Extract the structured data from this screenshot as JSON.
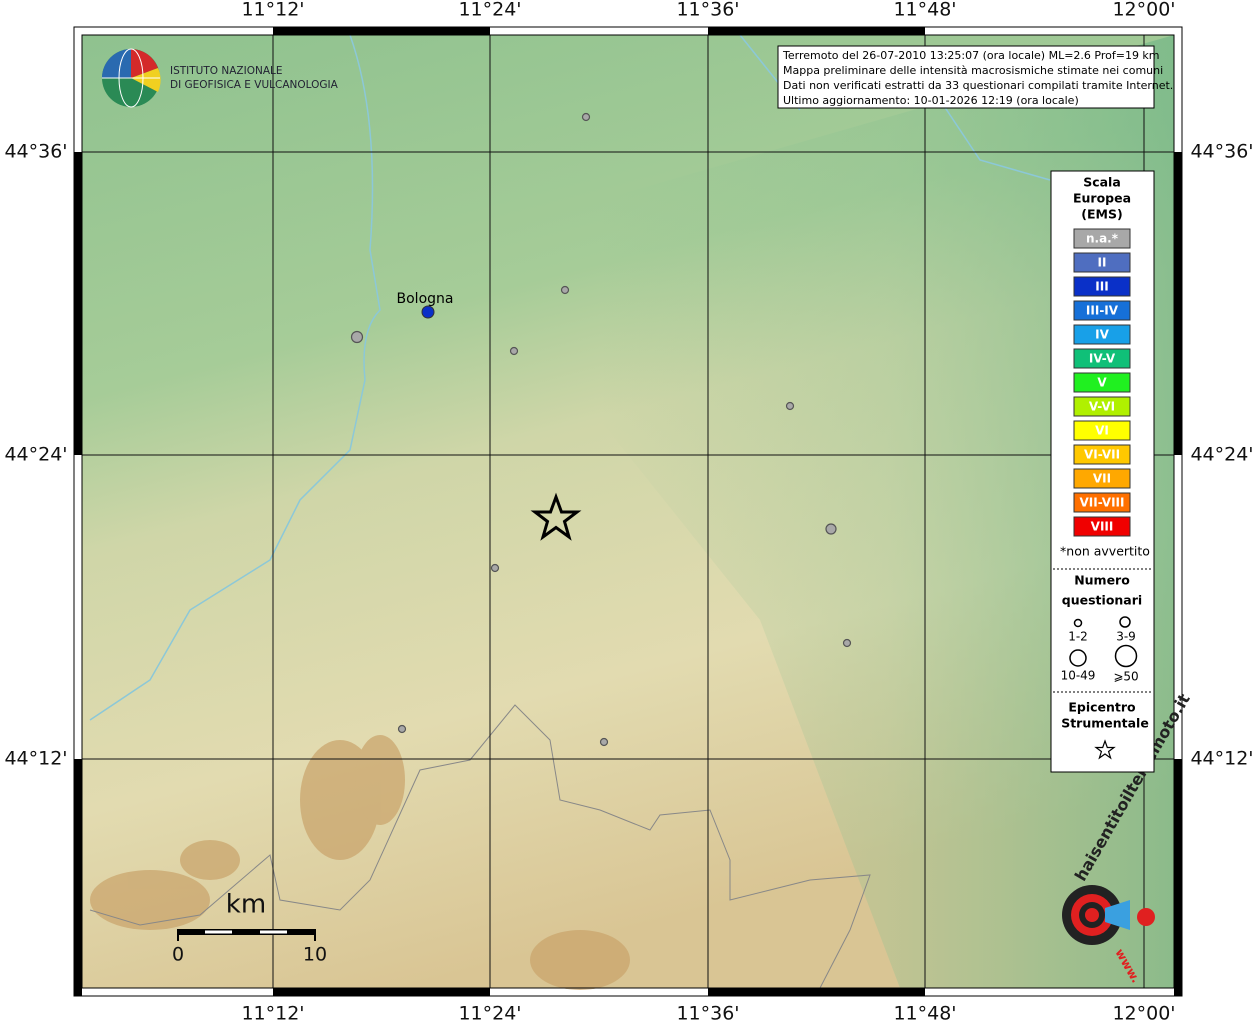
{
  "header": {
    "institute": [
      "ISTITUTO NAZIONALE",
      "DI GEOFISICA E VULCANOLOGIA"
    ]
  },
  "info": [
    "Terremoto del 26-07-2010 13:25:07 (ora locale) ML=2.6 Prof=19 km",
    "Mappa preliminare delle intensità macrosismiche stimate nei comuni",
    "Dati non verificati estratti da 33 questionari compilati tramite Internet.",
    "Ultimo aggiornamento: 10-01-2026 12:19 (ora locale)"
  ],
  "axes": {
    "lon": [
      "11°12'",
      "11°24'",
      "11°36'",
      "11°48'",
      "12°00'"
    ],
    "lat": [
      "44°36'",
      "44°24'",
      "44°12'"
    ]
  },
  "places": [
    {
      "label": "Bologna"
    }
  ],
  "legend": {
    "scale_title": [
      "Scala",
      "Europea",
      "(EMS)"
    ],
    "classes": [
      {
        "label": "n.a.*",
        "color": "#a8a8a8"
      },
      {
        "label": "II",
        "color": "#4f6ec0"
      },
      {
        "label": "III",
        "color": "#0a30c8"
      },
      {
        "label": "III-IV",
        "color": "#1670d8"
      },
      {
        "label": "IV",
        "color": "#18a0e8"
      },
      {
        "label": "IV-V",
        "color": "#10c078"
      },
      {
        "label": "V",
        "color": "#20f020"
      },
      {
        "label": "V-VI",
        "color": "#b0f000"
      },
      {
        "label": "VI",
        "color": "#ffff00"
      },
      {
        "label": "VI-VII",
        "color": "#ffc800"
      },
      {
        "label": "VII",
        "color": "#ffa800"
      },
      {
        "label": "VII-VIII",
        "color": "#ff7000"
      },
      {
        "label": "VIII",
        "color": "#f00000"
      }
    ],
    "note": "*non avvertito",
    "count_title": [
      "Numero",
      "questionari"
    ],
    "sizes": [
      "1-2",
      "3-9",
      "10-49",
      "⩾50"
    ],
    "epicenter_title": [
      "Epicentro",
      "Strumentale"
    ]
  },
  "scalebar": {
    "unit": "km",
    "labels": [
      "0",
      "10"
    ]
  },
  "logo": {
    "text": "haisentitoilterremoto.it",
    "url": "www."
  }
}
